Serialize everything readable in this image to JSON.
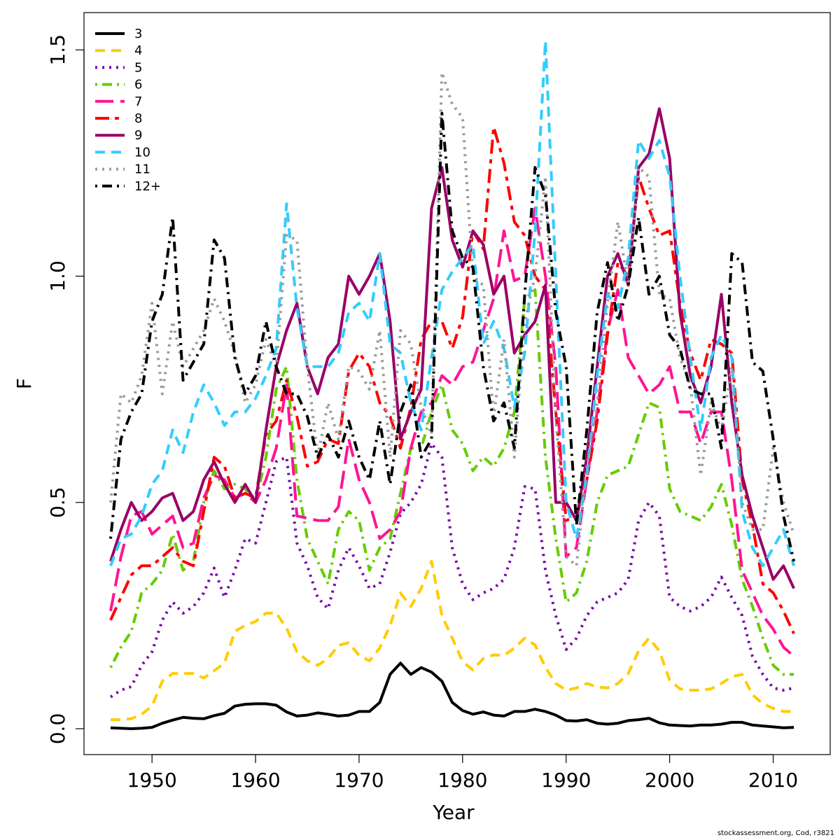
{
  "chart_data": {
    "type": "line",
    "title": "",
    "xlabel": "Year",
    "ylabel": "F",
    "xlim": [
      1946,
      2012
    ],
    "ylim": [
      0,
      1.5
    ],
    "xticks": [
      1950,
      1960,
      1970,
      1980,
      1990,
      2000,
      2010
    ],
    "yticks": [
      0.0,
      0.5,
      1.0,
      1.5
    ],
    "ytick_labels": [
      "0.0",
      "0.5",
      "1.0",
      "1.5"
    ],
    "grid": false,
    "legend": "top-left",
    "x": [
      1946,
      1947,
      1948,
      1949,
      1950,
      1951,
      1952,
      1953,
      1954,
      1955,
      1956,
      1957,
      1958,
      1959,
      1960,
      1961,
      1962,
      1963,
      1964,
      1965,
      1966,
      1967,
      1968,
      1969,
      1970,
      1971,
      1972,
      1973,
      1974,
      1975,
      1976,
      1977,
      1978,
      1979,
      1980,
      1981,
      1982,
      1983,
      1984,
      1985,
      1986,
      1987,
      1988,
      1989,
      1990,
      1991,
      1992,
      1993,
      1994,
      1995,
      1996,
      1997,
      1998,
      1999,
      2000,
      2001,
      2002,
      2003,
      2004,
      2005,
      2006,
      2007,
      2008,
      2009,
      2010,
      2011,
      2012
    ],
    "series": [
      {
        "name": "3",
        "color": "#000000",
        "dash": "solid",
        "values": [
          0.002,
          0.001,
          0.0,
          0.001,
          0.003,
          0.012,
          0.019,
          0.025,
          0.023,
          0.022,
          0.029,
          0.034,
          0.05,
          0.054,
          0.055,
          0.055,
          0.052,
          0.037,
          0.028,
          0.03,
          0.035,
          0.032,
          0.028,
          0.03,
          0.038,
          0.038,
          0.058,
          0.12,
          0.145,
          0.12,
          0.135,
          0.125,
          0.105,
          0.058,
          0.04,
          0.032,
          0.037,
          0.03,
          0.028,
          0.038,
          0.038,
          0.043,
          0.038,
          0.03,
          0.018,
          0.017,
          0.02,
          0.012,
          0.01,
          0.012,
          0.018,
          0.02,
          0.023,
          0.013,
          0.008,
          0.007,
          0.006,
          0.008,
          0.008,
          0.01,
          0.014,
          0.014,
          0.008,
          0.006,
          0.004,
          0.002,
          0.003
        ]
      },
      {
        "name": "4",
        "color": "#ffcc00",
        "dash": "long",
        "values": [
          0.02,
          0.02,
          0.022,
          0.032,
          0.05,
          0.105,
          0.122,
          0.122,
          0.122,
          0.112,
          0.128,
          0.145,
          0.215,
          0.228,
          0.237,
          0.255,
          0.256,
          0.222,
          0.17,
          0.15,
          0.14,
          0.155,
          0.184,
          0.19,
          0.162,
          0.15,
          0.178,
          0.228,
          0.3,
          0.27,
          0.31,
          0.37,
          0.25,
          0.2,
          0.148,
          0.13,
          0.155,
          0.163,
          0.162,
          0.178,
          0.2,
          0.185,
          0.135,
          0.1,
          0.085,
          0.09,
          0.1,
          0.092,
          0.09,
          0.1,
          0.122,
          0.172,
          0.2,
          0.172,
          0.107,
          0.088,
          0.085,
          0.085,
          0.088,
          0.1,
          0.115,
          0.12,
          0.075,
          0.055,
          0.045,
          0.038,
          0.038
        ]
      },
      {
        "name": "5",
        "color": "#7700aa",
        "dash": "dot",
        "values": [
          0.07,
          0.085,
          0.093,
          0.14,
          0.17,
          0.24,
          0.28,
          0.255,
          0.27,
          0.3,
          0.355,
          0.29,
          0.35,
          0.42,
          0.41,
          0.5,
          0.59,
          0.6,
          0.41,
          0.36,
          0.29,
          0.265,
          0.35,
          0.4,
          0.36,
          0.31,
          0.32,
          0.39,
          0.475,
          0.5,
          0.54,
          0.63,
          0.6,
          0.4,
          0.32,
          0.285,
          0.3,
          0.31,
          0.33,
          0.4,
          0.535,
          0.53,
          0.35,
          0.25,
          0.175,
          0.2,
          0.25,
          0.28,
          0.29,
          0.3,
          0.33,
          0.46,
          0.5,
          0.47,
          0.29,
          0.27,
          0.26,
          0.27,
          0.29,
          0.335,
          0.29,
          0.25,
          0.16,
          0.12,
          0.09,
          0.085,
          0.09
        ]
      },
      {
        "name": "6",
        "color": "#66cc00",
        "dash": "dotdash",
        "values": [
          0.135,
          0.18,
          0.215,
          0.3,
          0.32,
          0.35,
          0.43,
          0.35,
          0.37,
          0.5,
          0.57,
          0.53,
          0.54,
          0.53,
          0.5,
          0.6,
          0.75,
          0.8,
          0.55,
          0.42,
          0.37,
          0.32,
          0.44,
          0.48,
          0.46,
          0.35,
          0.4,
          0.42,
          0.52,
          0.62,
          0.62,
          0.7,
          0.76,
          0.66,
          0.63,
          0.57,
          0.6,
          0.58,
          0.62,
          0.7,
          0.95,
          0.97,
          0.6,
          0.42,
          0.28,
          0.3,
          0.37,
          0.5,
          0.56,
          0.57,
          0.58,
          0.65,
          0.72,
          0.71,
          0.53,
          0.48,
          0.47,
          0.46,
          0.49,
          0.54,
          0.45,
          0.33,
          0.27,
          0.2,
          0.14,
          0.12,
          0.12
        ]
      },
      {
        "name": "7",
        "color": "#ff1493",
        "dash": "longdash",
        "values": [
          0.26,
          0.38,
          0.47,
          0.48,
          0.43,
          0.45,
          0.47,
          0.4,
          0.41,
          0.51,
          0.56,
          0.55,
          0.51,
          0.52,
          0.5,
          0.55,
          0.62,
          0.76,
          0.47,
          0.465,
          0.46,
          0.46,
          0.49,
          0.64,
          0.55,
          0.5,
          0.42,
          0.44,
          0.48,
          0.62,
          0.7,
          0.72,
          0.78,
          0.76,
          0.8,
          0.81,
          0.88,
          0.95,
          1.1,
          0.99,
          1.0,
          1.15,
          1.0,
          0.8,
          0.38,
          0.4,
          0.55,
          0.7,
          0.88,
          0.97,
          0.82,
          0.78,
          0.74,
          0.76,
          0.8,
          0.7,
          0.7,
          0.63,
          0.7,
          0.7,
          0.55,
          0.35,
          0.3,
          0.25,
          0.22,
          0.18,
          0.16
        ]
      },
      {
        "name": "8",
        "color": "#ff0000",
        "dash": "dashlong",
        "values": [
          0.24,
          0.29,
          0.34,
          0.36,
          0.36,
          0.38,
          0.4,
          0.37,
          0.36,
          0.48,
          0.6,
          0.58,
          0.51,
          0.52,
          0.51,
          0.65,
          0.68,
          0.77,
          0.69,
          0.58,
          0.59,
          0.64,
          0.63,
          0.79,
          0.83,
          0.8,
          0.72,
          0.69,
          0.62,
          0.71,
          0.86,
          0.9,
          0.9,
          0.84,
          0.91,
          1.1,
          1.06,
          1.33,
          1.25,
          1.12,
          1.09,
          1.0,
          0.97,
          0.7,
          0.46,
          0.47,
          0.55,
          0.68,
          0.87,
          1.03,
          1.0,
          1.22,
          1.15,
          1.09,
          1.1,
          0.94,
          0.83,
          0.77,
          0.86,
          0.85,
          0.83,
          0.55,
          0.45,
          0.32,
          0.3,
          0.26,
          0.21
        ]
      },
      {
        "name": "9",
        "color": "#990066",
        "dash": "solid",
        "values": [
          0.37,
          0.44,
          0.5,
          0.46,
          0.48,
          0.51,
          0.52,
          0.46,
          0.48,
          0.55,
          0.59,
          0.54,
          0.5,
          0.54,
          0.5,
          0.66,
          0.8,
          0.88,
          0.94,
          0.8,
          0.74,
          0.82,
          0.85,
          1.0,
          0.96,
          1.0,
          1.05,
          0.9,
          0.64,
          0.7,
          0.75,
          1.15,
          1.24,
          1.08,
          1.02,
          1.1,
          1.07,
          0.96,
          1.0,
          0.83,
          0.87,
          0.9,
          0.98,
          0.5,
          0.5,
          0.46,
          0.6,
          0.8,
          1.0,
          1.05,
          0.98,
          1.24,
          1.27,
          1.37,
          1.26,
          0.92,
          0.78,
          0.72,
          0.8,
          0.96,
          0.72,
          0.56,
          0.47,
          0.4,
          0.33,
          0.36,
          0.31
        ]
      },
      {
        "name": "10",
        "color": "#33ccff",
        "dash": "long",
        "values": [
          0.36,
          0.42,
          0.43,
          0.47,
          0.54,
          0.57,
          0.66,
          0.61,
          0.7,
          0.76,
          0.72,
          0.67,
          0.7,
          0.7,
          0.73,
          0.78,
          0.84,
          1.16,
          0.93,
          0.8,
          0.8,
          0.8,
          0.83,
          0.92,
          0.94,
          0.9,
          1.05,
          0.85,
          0.83,
          0.72,
          0.66,
          0.82,
          0.97,
          1.01,
          1.04,
          1.07,
          0.85,
          0.9,
          0.84,
          0.71,
          0.83,
          1.1,
          1.52,
          1.0,
          0.5,
          0.42,
          0.56,
          0.78,
          0.96,
          0.93,
          1.04,
          1.3,
          1.26,
          1.3,
          1.22,
          1.0,
          0.82,
          0.66,
          0.82,
          0.87,
          0.82,
          0.48,
          0.4,
          0.36,
          0.4,
          0.44,
          0.36
        ]
      },
      {
        "name": "11",
        "color": "#999999",
        "dash": "dot",
        "values": [
          0.5,
          0.74,
          0.72,
          0.78,
          0.94,
          0.74,
          0.9,
          0.8,
          0.84,
          0.88,
          0.95,
          0.9,
          0.83,
          0.72,
          0.76,
          0.86,
          0.8,
          1.09,
          1.08,
          0.8,
          0.6,
          0.72,
          0.64,
          0.8,
          0.79,
          0.75,
          0.88,
          0.6,
          0.88,
          0.85,
          0.71,
          0.65,
          1.45,
          1.38,
          1.35,
          1.0,
          0.98,
          0.69,
          0.86,
          0.6,
          0.9,
          1.0,
          1.22,
          0.69,
          0.38,
          0.36,
          0.58,
          0.72,
          0.94,
          1.12,
          0.98,
          1.24,
          1.22,
          0.96,
          0.95,
          0.82,
          0.76,
          0.56,
          0.72,
          0.66,
          0.8,
          0.5,
          0.44,
          0.44,
          0.62,
          0.5,
          0.43
        ]
      },
      {
        "name": "12+",
        "color": "#000000",
        "dash": "dotdash",
        "values": [
          0.42,
          0.64,
          0.7,
          0.74,
          0.9,
          0.96,
          1.13,
          0.77,
          0.81,
          0.85,
          1.08,
          1.04,
          0.82,
          0.74,
          0.78,
          0.9,
          0.8,
          0.74,
          0.74,
          0.69,
          0.6,
          0.65,
          0.6,
          0.68,
          0.6,
          0.55,
          0.68,
          0.54,
          0.7,
          0.76,
          0.6,
          0.64,
          1.36,
          1.1,
          1.04,
          1.02,
          0.8,
          0.68,
          0.72,
          0.62,
          0.96,
          1.24,
          1.18,
          0.92,
          0.8,
          0.45,
          0.66,
          0.92,
          1.03,
          0.9,
          0.98,
          1.13,
          0.96,
          1.0,
          0.87,
          0.84,
          0.75,
          0.74,
          0.74,
          0.62,
          1.05,
          1.03,
          0.81,
          0.79,
          0.64,
          0.47,
          0.37
        ]
      }
    ]
  },
  "footer": "stockassessment.org, Cod, r3821"
}
